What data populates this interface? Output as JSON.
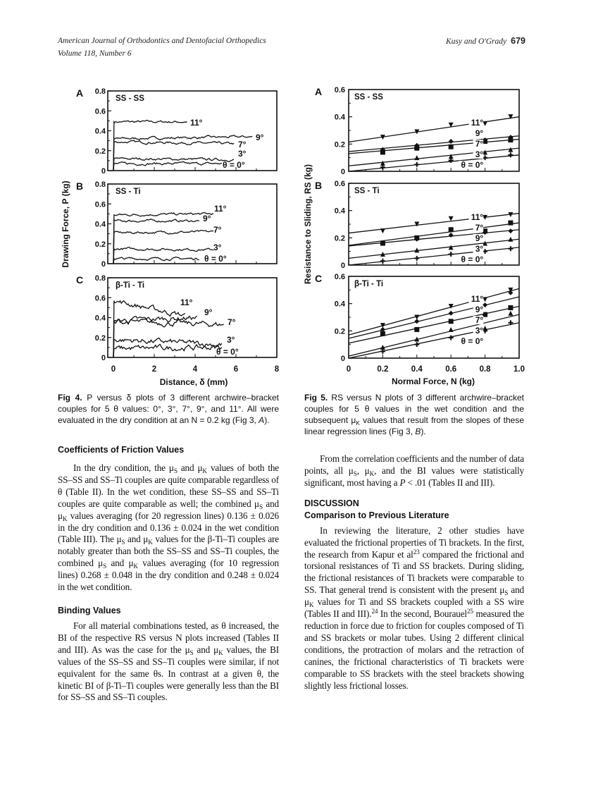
{
  "header": {
    "journal": "American Journal of Orthodontics and Dentofacial Orthopedics",
    "volume": "Volume 118, Number 6",
    "authors": "Kusy and O'Grady",
    "page_number": "679"
  },
  "fig4_caption": [
    {
      "b": "Fig 4."
    },
    " P versus δ plots of 3 different archwire–bracket couples for 5 θ values: 0°, 3°, 7°, 9°, and 11°. All were evaluated in the dry condition at an N = 0.2 kg (Fig 3, ",
    {
      "i": "A"
    },
    ")."
  ],
  "fig5_caption": [
    {
      "b": "Fig 5."
    },
    " RS versus N plots of 3 different archwire–bracket couples for 5 θ values in the wet condition and the subsequent μ",
    {
      "sub": "K"
    },
    " values that result from the slopes of these linear regression lines (Fig 3, ",
    {
      "i": "B"
    },
    ")."
  ],
  "left_column": {
    "heading1": "Coefficients of Friction Values",
    "para1": [
      "In the dry condition, the μ",
      {
        "sub": "S"
      },
      " and μ",
      {
        "sub": "K"
      },
      " values of both the SS–SS and SS–Ti couples are quite comparable regardless of θ (Table II). In the wet condition, these SS–SS and SS–Ti couples are quite comparable as well; the combined μ",
      {
        "sub": "S"
      },
      " and μ",
      {
        "sub": "K"
      },
      " values averaging (for 20 regression lines) 0.136 ± 0.026 in the dry condition and 0.136 ± 0.024 in the wet condition (Table III). The μ",
      {
        "sub": "S"
      },
      " and μ",
      {
        "sub": "K"
      },
      " values for the β-Ti–Ti couples are notably greater than both the SS–SS and SS–Ti couples, the combined μ",
      {
        "sub": "S"
      },
      " and μ",
      {
        "sub": "K"
      },
      " values averaging (for 10 regression lines) 0.268 ± 0.048 in the dry condition and 0.248 ± 0.024 in the wet condition."
    ],
    "heading2": "Binding Values",
    "para2": [
      "For all material combinations tested, as θ increased, the BI of the respective RS versus N plots increased (Tables II and III). As was the case for the μ",
      {
        "sub": "S"
      },
      " and μ",
      {
        "sub": "K"
      },
      " values, the BI values of the SS–SS and SS–Ti couples were similar, if not equivalent for the same θs. In contrast at a given θ, the kinetic BI of β-Ti–Ti couples were generally less than the BI for SS–SS and SS–Ti couples."
    ]
  },
  "right_column": {
    "para1": [
      "From the correlation coefficients and the number of data points, all μ",
      {
        "sub": "S"
      },
      ", μ",
      {
        "sub": "K"
      },
      ", and the BI values were statistically significant, most having a ",
      {
        "i": "P"
      },
      " < .01 (Tables II and III)."
    ],
    "heading1": "DISCUSSION",
    "heading2": "Comparison to Previous Literature",
    "para2": [
      "In reviewing the literature, 2 other studies have evaluated the frictional properties of Ti brackets. In the first, the research from Kapur et al",
      {
        "sup": "23"
      },
      " compared the frictional and torsional resistances of Ti and SS brackets. During sliding, the frictional resistances of Ti brackets were comparable to SS. That general trend is consistent with the present μ",
      {
        "sub": "S"
      },
      " and μ",
      {
        "sub": "K"
      },
      " values for Ti and SS brackets coupled with a SS wire (Tables II and III).",
      {
        "sup": "24"
      },
      " In the second, Bourauel",
      {
        "sup": "25"
      },
      " measured the reduction in force due to friction for couples composed of Ti and SS brackets or molar tubes. Using 2 different clinical conditions, the protraction of molars and the retraction of canines, the frictional characteristics of Ti brackets were comparable to SS brackets with the steel brackets showing slightly less frictional losses."
    ]
  },
  "chart_data": [
    {
      "type": "line",
      "figure": "Fig 4",
      "xlabel": "Distance, δ (mm)",
      "ylabel": "Drawing Force, P (kg)",
      "xlim": [
        0,
        8
      ],
      "ylim": [
        0,
        0.8
      ],
      "x_ticks": [
        "0",
        "2",
        "4",
        "6",
        "8"
      ],
      "y_ticks": [
        "0",
        "0.2",
        "0.4",
        "0.6",
        "0.8"
      ],
      "grid": false,
      "panels": [
        {
          "letter": "A",
          "title": "SS - SS",
          "series": [
            {
              "name": "11°",
              "p_start": 0.49,
              "p_end": 0.49,
              "delta_end": 3.6
            },
            {
              "name": "9°",
              "p_start": 0.32,
              "p_end": 0.34,
              "delta_end": 6.8
            },
            {
              "name": "7°",
              "p_start": 0.29,
              "p_end": 0.27,
              "delta_end": 5.9
            },
            {
              "name": "3°",
              "p_start": 0.12,
              "p_end": 0.11,
              "delta_end": 5.9
            },
            {
              "name": "θ = 0°",
              "p_start": 0.07,
              "p_end": 0.07,
              "delta_end": 5.3
            }
          ]
        },
        {
          "letter": "B",
          "title": "SS - Ti",
          "series": [
            {
              "name": "11°",
              "p_start": 0.49,
              "p_end": 0.5,
              "delta_end": 4.9
            },
            {
              "name": "9°",
              "p_start": 0.43,
              "p_end": 0.43,
              "delta_end": 4.2
            },
            {
              "name": "7°",
              "p_start": 0.31,
              "p_end": 0.32,
              "delta_end": 4.9
            },
            {
              "name": "3°",
              "p_start": 0.15,
              "p_end": 0.14,
              "delta_end": 4.9
            },
            {
              "name": "θ = 0°",
              "p_start": 0.05,
              "p_end": 0.05,
              "delta_end": 4.2
            }
          ]
        },
        {
          "letter": "C",
          "title": "β-Ti - Ti",
          "series": [
            {
              "name": "11°",
              "p_start": 0.57,
              "p_end": 0.42,
              "delta_end": 3.5
            },
            {
              "name": "9°",
              "p_start": 0.37,
              "p_end": 0.4,
              "delta_end": 4.1
            },
            {
              "name": "7°",
              "p_start": 0.36,
              "p_end": 0.33,
              "delta_end": 5.4
            },
            {
              "name": "3°",
              "p_start": 0.18,
              "p_end": 0.13,
              "delta_end": 5.3
            },
            {
              "name": "θ = 0°",
              "p_start": 0.09,
              "p_end": 0.1,
              "delta_end": 5.3
            }
          ]
        }
      ]
    },
    {
      "type": "scatter",
      "figure": "Fig 5",
      "xlabel": "Normal Force, N (kg)",
      "ylabel": "Resistance to Sliding, RS (kg)",
      "xlim": [
        0,
        1.0
      ],
      "ylim": [
        0,
        0.6
      ],
      "x_ticks": [
        "0",
        "0.2",
        "0.4",
        "0.6",
        "0.8",
        "1.0"
      ],
      "y_ticks": [
        "0",
        "0.2",
        "0.4",
        "0.6"
      ],
      "grid": false,
      "x": [
        0.2,
        0.4,
        0.6,
        0.8,
        0.95
      ],
      "panels": [
        {
          "letter": "A",
          "title": "SS - SS",
          "series": [
            {
              "name": "11°",
              "marker": "triangle-down",
              "fit": [
                0.215,
                0.4
              ],
              "values": [
                0.25,
                0.29,
                0.34,
                0.35,
                0.4
              ]
            },
            {
              "name": "9°",
              "marker": "diamond",
              "fit": [
                0.145,
                0.26
              ],
              "values": [
                0.16,
                0.19,
                0.22,
                0.23,
                0.25
              ]
            },
            {
              "name": "7°",
              "marker": "square",
              "fit": [
                0.13,
                0.235
              ],
              "values": [
                0.14,
                0.17,
                0.18,
                0.22,
                0.23
              ]
            },
            {
              "name": "3°",
              "marker": "triangle-up",
              "fit": [
                0.04,
                0.17
              ],
              "values": [
                0.06,
                0.1,
                0.11,
                0.14,
                0.16
              ]
            },
            {
              "name": "θ = 0°",
              "marker": "plus",
              "fit": [
                0.0,
                0.12
              ],
              "values": [
                0.03,
                0.05,
                0.08,
                0.1,
                0.12
              ]
            }
          ]
        },
        {
          "letter": "B",
          "title": "SS - Ti",
          "series": [
            {
              "name": "11°",
              "marker": "triangle-down",
              "fit": [
                0.235,
                0.38
              ],
              "values": [
                0.25,
                0.3,
                0.34,
                0.35,
                0.37
              ]
            },
            {
              "name": "7°",
              "marker": "square",
              "fit": [
                0.145,
                0.31
              ],
              "values": [
                0.16,
                0.2,
                0.26,
                0.25,
                0.31
              ]
            },
            {
              "name": "9°",
              "marker": "diamond",
              "fit": [
                0.14,
                0.26
              ],
              "values": [
                0.16,
                0.19,
                0.22,
                0.24,
                0.25
              ]
            },
            {
              "name": "3°",
              "marker": "triangle-up",
              "fit": [
                0.05,
                0.19
              ],
              "values": [
                0.08,
                0.11,
                0.13,
                0.16,
                0.19
              ]
            },
            {
              "name": "θ = 0°",
              "marker": "plus",
              "fit": [
                0.0,
                0.13
              ],
              "values": [
                0.03,
                0.05,
                0.08,
                0.1,
                0.12
              ]
            }
          ]
        },
        {
          "letter": "C",
          "title": "β-Ti - Ti",
          "series": [
            {
              "name": "11°",
              "marker": "triangle-down",
              "fit": [
                0.17,
                0.51
              ],
              "values": [
                0.24,
                0.3,
                0.38,
                0.43,
                0.5
              ]
            },
            {
              "name": "9°",
              "marker": "diamond",
              "fit": [
                0.145,
                0.45
              ],
              "values": [
                0.21,
                0.27,
                0.33,
                0.39,
                0.48
              ]
            },
            {
              "name": "7°",
              "marker": "square",
              "fit": [
                0.11,
                0.38
              ],
              "values": [
                0.18,
                0.21,
                0.27,
                0.32,
                0.37
              ]
            },
            {
              "name": "3°",
              "marker": "triangle-up",
              "fit": [
                0.015,
                0.32
              ],
              "values": [
                0.08,
                0.14,
                0.21,
                0.22,
                0.33
              ]
            },
            {
              "name": "θ = 0°",
              "marker": "plus",
              "fit": [
                0.0,
                0.26
              ],
              "values": [
                0.05,
                0.1,
                0.15,
                0.2,
                0.26
              ]
            }
          ]
        }
      ]
    }
  ]
}
